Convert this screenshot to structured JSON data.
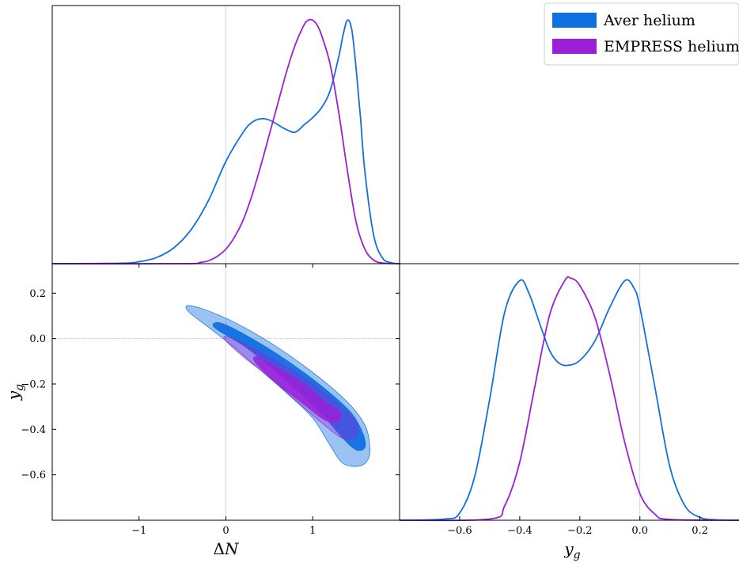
{
  "chart_data": [
    {
      "panel": "1D marginal",
      "type": "line",
      "xlabel": "",
      "ylabel": "",
      "xlim": [
        -2,
        2
      ],
      "ylim": [
        0,
        1.06
      ],
      "reference_line_x": 0,
      "series": [
        {
          "name": "Aver helium",
          "color": "#1170e0",
          "x": [
            -2.0,
            -1.2,
            -1.0,
            -0.8,
            -0.6,
            -0.4,
            -0.2,
            0.0,
            0.2,
            0.3,
            0.4,
            0.5,
            0.6,
            0.7,
            0.8,
            0.9,
            1.0,
            1.1,
            1.2,
            1.3,
            1.35,
            1.4,
            1.45,
            1.5,
            1.55,
            1.6,
            1.7,
            1.8,
            1.9,
            2.0
          ],
          "y": [
            0.0,
            0.002,
            0.008,
            0.025,
            0.065,
            0.14,
            0.26,
            0.42,
            0.54,
            0.58,
            0.595,
            0.59,
            0.57,
            0.55,
            0.54,
            0.57,
            0.6,
            0.64,
            0.71,
            0.85,
            0.94,
            1.0,
            0.96,
            0.8,
            0.6,
            0.38,
            0.12,
            0.025,
            0.004,
            0.0
          ]
        },
        {
          "name": "EMPRESS helium",
          "color": "#9b1fd8",
          "x": [
            -2.0,
            -0.5,
            -0.3,
            -0.2,
            -0.1,
            0.0,
            0.1,
            0.2,
            0.3,
            0.4,
            0.5,
            0.6,
            0.7,
            0.8,
            0.9,
            0.95,
            1.0,
            1.05,
            1.1,
            1.2,
            1.3,
            1.4,
            1.5,
            1.6,
            1.7,
            1.8,
            2.0
          ],
          "y": [
            0.0,
            0.0,
            0.005,
            0.012,
            0.03,
            0.06,
            0.11,
            0.18,
            0.28,
            0.4,
            0.53,
            0.66,
            0.79,
            0.9,
            0.98,
            1.0,
            1.0,
            0.98,
            0.94,
            0.82,
            0.62,
            0.38,
            0.17,
            0.06,
            0.015,
            0.003,
            0.0
          ]
        }
      ]
    },
    {
      "panel": "2D contours",
      "type": "contour",
      "xlabel": "ΔN",
      "ylabel": "y_g",
      "xlim": [
        -2,
        2
      ],
      "ylim": [
        -0.8,
        0.33
      ],
      "xticks": [
        -1,
        0,
        1
      ],
      "yticks": [
        0.2,
        0.0,
        -0.2,
        -0.4,
        -0.6
      ],
      "reference_line_x": 0,
      "reference_line_y": 0.0,
      "series": [
        {
          "name": "Aver helium",
          "color": "#1170e0",
          "contour_95": [
            [
              -0.45,
              0.145
            ],
            [
              -0.3,
              0.135
            ],
            [
              0.0,
              0.09
            ],
            [
              0.3,
              0.03
            ],
            [
              0.6,
              -0.04
            ],
            [
              0.9,
              -0.12
            ],
            [
              1.2,
              -0.21
            ],
            [
              1.45,
              -0.3
            ],
            [
              1.6,
              -0.38
            ],
            [
              1.65,
              -0.45
            ],
            [
              1.65,
              -0.52
            ],
            [
              1.55,
              -0.56
            ],
            [
              1.35,
              -0.55
            ],
            [
              1.2,
              -0.47
            ],
            [
              1.0,
              -0.35
            ],
            [
              0.7,
              -0.24
            ],
            [
              0.4,
              -0.14
            ],
            [
              0.1,
              -0.04
            ],
            [
              -0.2,
              0.05
            ],
            [
              -0.42,
              0.115
            ]
          ],
          "contour_68": [
            [
              -0.12,
              0.07
            ],
            [
              0.0,
              0.06
            ],
            [
              0.3,
              0.0
            ],
            [
              0.6,
              -0.07
            ],
            [
              0.9,
              -0.15
            ],
            [
              1.2,
              -0.24
            ],
            [
              1.45,
              -0.33
            ],
            [
              1.58,
              -0.42
            ],
            [
              1.6,
              -0.48
            ],
            [
              1.5,
              -0.49
            ],
            [
              1.35,
              -0.44
            ],
            [
              1.1,
              -0.33
            ],
            [
              0.8,
              -0.22
            ],
            [
              0.5,
              -0.12
            ],
            [
              0.2,
              -0.03
            ],
            [
              -0.12,
              0.045
            ]
          ]
        },
        {
          "name": "EMPRESS helium",
          "color": "#9b1fd8",
          "contour_95": [
            [
              0.0,
              0.01
            ],
            [
              0.2,
              -0.02
            ],
            [
              0.5,
              -0.08
            ],
            [
              0.8,
              -0.15
            ],
            [
              1.1,
              -0.23
            ],
            [
              1.35,
              -0.31
            ],
            [
              1.5,
              -0.37
            ],
            [
              1.5,
              -0.43
            ],
            [
              1.35,
              -0.44
            ],
            [
              1.1,
              -0.37
            ],
            [
              0.8,
              -0.27
            ],
            [
              0.5,
              -0.17
            ],
            [
              0.2,
              -0.08
            ],
            [
              0.0,
              -0.01
            ]
          ],
          "contour_68": [
            [
              0.35,
              -0.08
            ],
            [
              0.6,
              -0.13
            ],
            [
              0.9,
              -0.2
            ],
            [
              1.15,
              -0.28
            ],
            [
              1.3,
              -0.32
            ],
            [
              1.3,
              -0.36
            ],
            [
              1.15,
              -0.36
            ],
            [
              0.9,
              -0.29
            ],
            [
              0.6,
              -0.2
            ],
            [
              0.35,
              -0.11
            ]
          ]
        }
      ]
    },
    {
      "panel": "1D marginal",
      "type": "line",
      "xlabel": "y_g",
      "ylabel": "",
      "xlim": [
        -0.8,
        0.33
      ],
      "ylim": [
        0,
        1.06
      ],
      "xticks": [
        -0.6,
        -0.4,
        -0.2,
        0.0,
        0.2
      ],
      "reference_line_x": 0.0,
      "series": [
        {
          "name": "Aver helium",
          "color": "#1170e0",
          "x": [
            -0.8,
            -0.65,
            -0.6,
            -0.55,
            -0.5,
            -0.45,
            -0.4,
            -0.37,
            -0.33,
            -0.3,
            -0.27,
            -0.24,
            -0.2,
            -0.15,
            -0.1,
            -0.05,
            -0.02,
            0.0,
            0.05,
            0.1,
            0.15,
            0.2,
            0.25,
            0.33
          ],
          "y": [
            0.0,
            0.005,
            0.03,
            0.18,
            0.5,
            0.86,
            0.99,
            0.94,
            0.8,
            0.7,
            0.65,
            0.64,
            0.66,
            0.74,
            0.88,
            0.99,
            0.96,
            0.88,
            0.55,
            0.22,
            0.06,
            0.012,
            0.002,
            0.0
          ]
        },
        {
          "name": "EMPRESS helium",
          "color": "#9b1fd8",
          "x": [
            -0.8,
            -0.5,
            -0.45,
            -0.4,
            -0.35,
            -0.3,
            -0.25,
            -0.23,
            -0.2,
            -0.15,
            -0.1,
            -0.05,
            0.0,
            0.05,
            0.1,
            0.33
          ],
          "y": [
            0.0,
            0.005,
            0.06,
            0.24,
            0.55,
            0.85,
            0.99,
            1.0,
            0.97,
            0.84,
            0.6,
            0.32,
            0.11,
            0.025,
            0.003,
            0.0
          ]
        }
      ]
    }
  ],
  "legend": {
    "placement": "top-right",
    "entries": [
      {
        "label": "Aver helium",
        "color": "#1170e0"
      },
      {
        "label": "EMPRESS helium",
        "color": "#9b1fd8"
      }
    ]
  }
}
